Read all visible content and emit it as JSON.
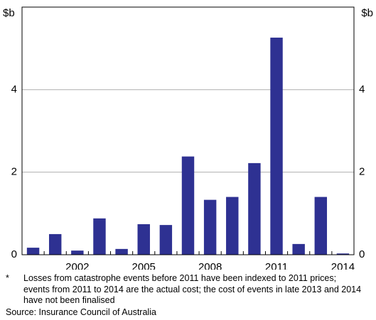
{
  "chart_data": {
    "type": "bar",
    "y_unit": "$b",
    "categories": [
      null,
      null,
      "2002",
      null,
      null,
      "2005",
      null,
      null,
      "2008",
      null,
      null,
      "2011",
      null,
      null,
      "2014"
    ],
    "values": [
      0.17,
      0.5,
      0.1,
      0.88,
      0.14,
      0.74,
      0.72,
      2.38,
      1.33,
      1.4,
      2.22,
      5.26,
      0.26,
      1.4,
      0.03
    ],
    "color": "#2e3192",
    "ylim": [
      0,
      6
    ],
    "yticks": [
      0,
      2,
      4
    ],
    "grid": true,
    "footnote_marker": "*",
    "footnote": "Losses from catastrophe events before 2011 have been indexed to 2011 prices; events from 2011 to 2014 are the actual cost; the cost of events in late 2013 and 2014 have not been finalised",
    "source": "Source: Insurance Council of Australia"
  }
}
